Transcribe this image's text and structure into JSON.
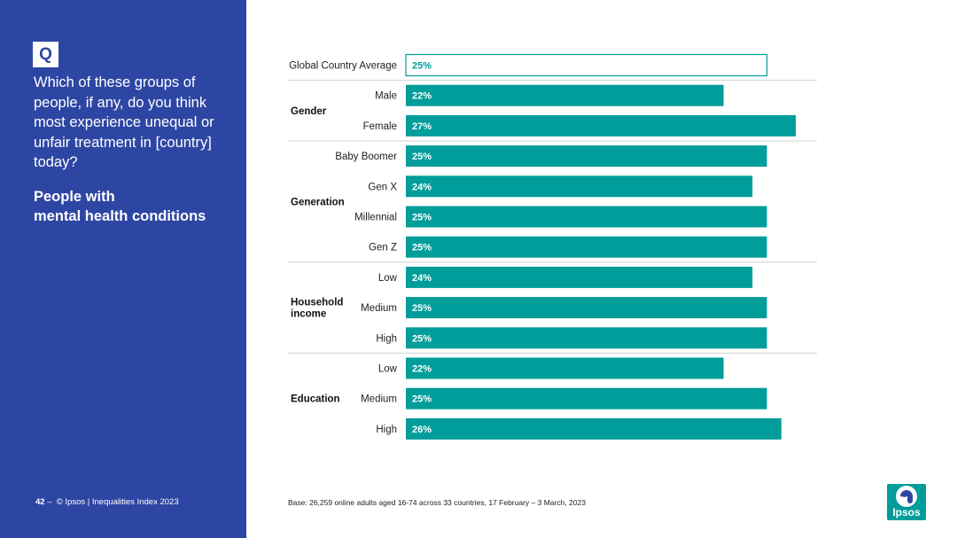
{
  "panel": {
    "q_badge": "Q",
    "question": "Which of these groups of people, if any, do you think most experience unequal or unfair treatment in [country] today?",
    "subject_line1": "People with",
    "subject_line2": "mental health conditions",
    "page_number": "42",
    "footer_dash": "–",
    "copyright": "© Ipsos | Inequalities Index 2023"
  },
  "base_note": "Base: 26,259 online adults aged 16-74 across 33 countries, 17 February – 3 March, 2023",
  "logo": {
    "text": "Ipsos",
    "color": "#009d9a"
  },
  "colors": {
    "panel": "#2e46a3",
    "bar": "#009d9a",
    "outline": "#009d9a",
    "divider": "#d0d0d0"
  },
  "chart_data": {
    "type": "bar",
    "orientation": "horizontal",
    "unit": "%",
    "xlim": [
      0,
      30
    ],
    "reference": {
      "label": "Global Country Average",
      "value": 25,
      "value_label": "25%"
    },
    "groups": [
      {
        "name": "Gender",
        "name_lines": [
          "Gender"
        ],
        "items": [
          {
            "label": "Male",
            "value": 22,
            "value_label": "22%"
          },
          {
            "label": "Female",
            "value": 27,
            "value_label": "27%"
          }
        ]
      },
      {
        "name": "Generation",
        "name_lines": [
          "Generation"
        ],
        "items": [
          {
            "label": "Baby Boomer",
            "value": 25,
            "value_label": "25%"
          },
          {
            "label": "Gen X",
            "value": 24,
            "value_label": "24%"
          },
          {
            "label": "Millennial",
            "value": 25,
            "value_label": "25%"
          },
          {
            "label": "Gen Z",
            "value": 25,
            "value_label": "25%"
          }
        ]
      },
      {
        "name": "Household income",
        "name_lines": [
          "Household",
          "income"
        ],
        "items": [
          {
            "label": "Low",
            "value": 24,
            "value_label": "24%"
          },
          {
            "label": "Medium",
            "value": 25,
            "value_label": "25%"
          },
          {
            "label": "High",
            "value": 25,
            "value_label": "25%"
          }
        ]
      },
      {
        "name": "Education",
        "name_lines": [
          "Education"
        ],
        "items": [
          {
            "label": "Low",
            "value": 22,
            "value_label": "22%"
          },
          {
            "label": "Medium",
            "value": 25,
            "value_label": "25%"
          },
          {
            "label": "High",
            "value": 26,
            "value_label": "26%"
          }
        ]
      }
    ]
  }
}
